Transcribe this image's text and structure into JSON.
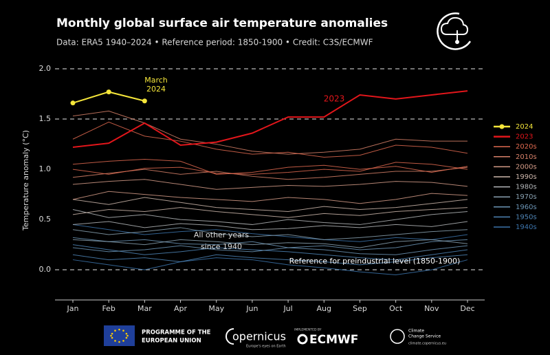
{
  "chart_data": {
    "type": "line",
    "title": "Monthly global surface air temperature anomalies",
    "subtitle": "Data: ERA5 1940–2024 • Reference period: 1850-1900 • Credit: C3S/ECMWF",
    "y_label": "Temperature anomaly (°C)",
    "categories": [
      "Jan",
      "Feb",
      "Mar",
      "Apr",
      "May",
      "Jun",
      "Jul",
      "Aug",
      "Sep",
      "Oct",
      "Nov",
      "Dec"
    ],
    "ylim": [
      -0.3,
      2.0
    ],
    "yticks": [
      {
        "value": 0,
        "label": "0.0"
      },
      {
        "value": 0.5,
        "label": "0.5"
      },
      {
        "value": 1,
        "label": "1.0"
      },
      {
        "value": 1.5,
        "label": "1.5"
      },
      {
        "value": 2,
        "label": "2.0"
      }
    ],
    "reference_lines": [
      0,
      1.5,
      2
    ],
    "legend": "right",
    "series": [
      {
        "name": "2024",
        "color": "#f5e63a",
        "markers": true,
        "values": [
          1.66,
          1.77,
          1.68,
          null,
          null,
          null,
          null,
          null,
          null,
          null,
          null,
          null
        ]
      },
      {
        "name": "2023",
        "color": "#e3161b",
        "values": [
          1.22,
          1.26,
          1.46,
          1.24,
          1.27,
          1.36,
          1.52,
          1.52,
          1.74,
          1.7,
          1.74,
          1.78
        ]
      },
      {
        "name": "2020s",
        "color": "#e06a50",
        "lines": [
          [
            1.3,
            1.47,
            1.33,
            1.28,
            1.2,
            1.15,
            1.17,
            1.12,
            1.14,
            1.24,
            1.22,
            1.16
          ],
          [
            1.0,
            0.95,
            1.01,
            1.02,
            0.96,
            0.95,
            0.97,
            1.0,
            0.98,
            1.07,
            1.05,
            1.0
          ],
          [
            1.05,
            1.08,
            1.1,
            1.08,
            0.95,
            0.97,
            1.02,
            1.04,
            1.0,
            1.03,
            0.97,
            1.03
          ]
        ]
      },
      {
        "name": "2010s",
        "color": "#d9826a",
        "lines": [
          [
            1.53,
            1.58,
            1.46,
            1.3,
            1.25,
            1.18,
            1.15,
            1.17,
            1.2,
            1.3,
            1.28,
            1.28
          ],
          [
            0.92,
            0.96,
            1.0,
            0.95,
            0.98,
            0.93,
            0.9,
            0.92,
            0.95,
            0.98,
            0.98,
            1.02
          ]
        ]
      },
      {
        "name": "2000s",
        "color": "#d59c88",
        "lines": [
          [
            0.85,
            0.88,
            0.9,
            0.85,
            0.8,
            0.82,
            0.84,
            0.83,
            0.85,
            0.88,
            0.87,
            0.83
          ],
          [
            0.7,
            0.78,
            0.75,
            0.72,
            0.7,
            0.68,
            0.72,
            0.7,
            0.66,
            0.7,
            0.76,
            0.74
          ]
        ]
      },
      {
        "name": "1990s",
        "color": "#cdb7ac",
        "lines": [
          [
            0.7,
            0.65,
            0.72,
            0.67,
            0.62,
            0.6,
            0.58,
            0.63,
            0.6,
            0.62,
            0.66,
            0.7
          ],
          [
            0.55,
            0.6,
            0.58,
            0.62,
            0.58,
            0.55,
            0.52,
            0.56,
            0.54,
            0.58,
            0.6,
            0.62
          ]
        ]
      },
      {
        "name": "1980s",
        "color": "#b4b7ba",
        "lines": [
          [
            0.6,
            0.52,
            0.55,
            0.5,
            0.48,
            0.45,
            0.5,
            0.47,
            0.45,
            0.5,
            0.55,
            0.58
          ],
          [
            0.45,
            0.48,
            0.42,
            0.46,
            0.44,
            0.4,
            0.41,
            0.44,
            0.42,
            0.45,
            0.43,
            0.48
          ]
        ]
      },
      {
        "name": "1970s",
        "color": "#8aa2b2",
        "lines": [
          [
            0.4,
            0.35,
            0.38,
            0.42,
            0.36,
            0.33,
            0.35,
            0.3,
            0.32,
            0.35,
            0.38,
            0.4
          ],
          [
            0.3,
            0.28,
            0.25,
            0.3,
            0.28,
            0.25,
            0.27,
            0.26,
            0.22,
            0.28,
            0.3,
            0.26
          ]
        ]
      },
      {
        "name": "1960s",
        "color": "#6c95b6",
        "lines": [
          [
            0.32,
            0.28,
            0.3,
            0.26,
            0.25,
            0.28,
            0.22,
            0.24,
            0.2,
            0.22,
            0.28,
            0.3
          ],
          [
            0.22,
            0.18,
            0.2,
            0.24,
            0.2,
            0.18,
            0.22,
            0.2,
            0.16,
            0.15,
            0.2,
            0.24
          ]
        ]
      },
      {
        "name": "1950s",
        "color": "#4f85b6",
        "lines": [
          [
            0.25,
            0.2,
            0.15,
            0.18,
            0.22,
            0.2,
            0.18,
            0.15,
            0.12,
            0.1,
            0.15,
            0.2
          ],
          [
            0.15,
            0.1,
            0.12,
            0.08,
            0.15,
            0.12,
            0.1,
            0.08,
            0.05,
            0.08,
            0.12,
            0.15
          ]
        ]
      },
      {
        "name": "1940s",
        "color": "#3c74ac",
        "lines": [
          [
            0.45,
            0.4,
            0.35,
            0.38,
            0.4,
            0.36,
            0.33,
            0.3,
            0.28,
            0.32,
            0.3,
            0.35
          ],
          [
            0.1,
            0.05,
            0.0,
            0.08,
            0.12,
            0.1,
            0.05,
            0.02,
            -0.02,
            -0.05,
            0.0,
            0.1
          ]
        ]
      }
    ],
    "annotations": {
      "march_2024": [
        "March",
        "2024"
      ],
      "year_2023": "2023",
      "other_years": [
        "All other years",
        "since 1940"
      ],
      "reference": "Reference for preindustrial level (1850-1900)"
    }
  },
  "footer": {
    "eu": [
      "PROGRAMME OF THE",
      "EUROPEAN UNION"
    ],
    "copernicus": "opernicus",
    "copernicus_tagline": "Europe's eyes on Earth",
    "implemented_by": "IMPLEMENTED BY",
    "ecmwf": "ECMWF",
    "c3s": [
      "Climate",
      "Change Service"
    ],
    "c3s_url": "climate.copernicus.eu"
  }
}
